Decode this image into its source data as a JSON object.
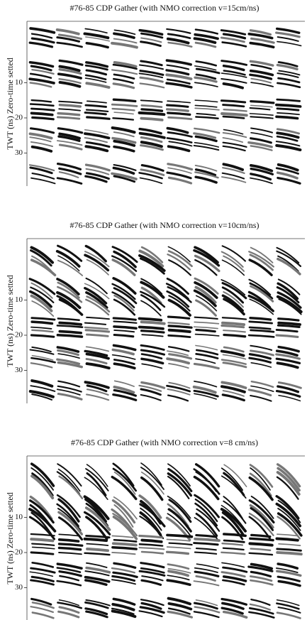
{
  "panels": [
    {
      "title": "#76-85 CDP Gather (with NMO correction v=15cm/ns)",
      "y_label": "TWT (ns) Zero-time setted",
      "yticks": [
        10,
        20,
        30
      ]
    },
    {
      "title": "#76-85 CDP Gather (with NMO correction v=10cm/ns)",
      "y_label": "TWT (ns) Zero-time setted",
      "yticks": [
        10,
        20,
        30
      ]
    },
    {
      "title": "#76-85 CDP Gather (with NMO correction v=8 cm/ns)",
      "y_label": "TWT (ns) Zero-time setted",
      "yticks": [
        10,
        20,
        30
      ]
    }
  ]
}
